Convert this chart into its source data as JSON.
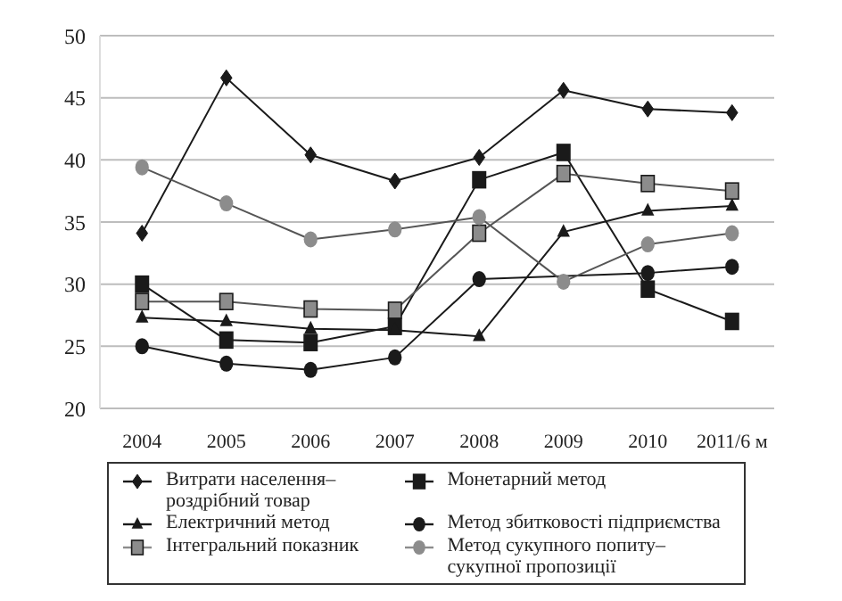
{
  "chart_data": {
    "type": "line",
    "categories": [
      "2004",
      "2005",
      "2006",
      "2007",
      "2008",
      "2009",
      "2010",
      "2011/6 м"
    ],
    "ylim": [
      20,
      50
    ],
    "yticks": [
      20,
      25,
      30,
      35,
      40,
      45,
      50
    ],
    "grid": "y",
    "legend": "bottom",
    "line_style": "solid",
    "series": [
      {
        "name": "Витрати населення–роздрібний товар",
        "color": "#1a1a1a",
        "marker": "diamond",
        "values": [
          34.1,
          46.6,
          40.4,
          38.3,
          40.2,
          45.6,
          44.1,
          43.8
        ]
      },
      {
        "name": "Монетарний метод",
        "color": "#1a1a1a",
        "marker": "square",
        "values": [
          30,
          25.5,
          25.3,
          26.6,
          38.4,
          40.6,
          29.6,
          27
        ]
      },
      {
        "name": "Електричний метод",
        "color": "#1a1a1a",
        "marker": "triangle",
        "values": [
          27.3,
          27,
          26.4,
          26.3,
          25.8,
          34.2,
          35.9,
          36.3
        ]
      },
      {
        "name": "Метод збитковості підприємства",
        "color": "#1a1a1a",
        "marker": "circle",
        "values": [
          25,
          23.6,
          23.1,
          24.1,
          30.4,
          null,
          30.9,
          31.4
        ]
      },
      {
        "name": "Інтегральний показник",
        "color": "#8c8c8c",
        "marker": "square",
        "values": [
          28.6,
          28.6,
          28,
          27.9,
          34.1,
          38.9,
          38.1,
          37.5
        ]
      },
      {
        "name": "Метод сукупного попиту–сукупної пропозиції",
        "color": "#8c8c8c",
        "marker": "circle",
        "values": [
          39.4,
          36.5,
          33.6,
          34.4,
          35.4,
          30.2,
          33.2,
          34.1
        ]
      }
    ]
  }
}
